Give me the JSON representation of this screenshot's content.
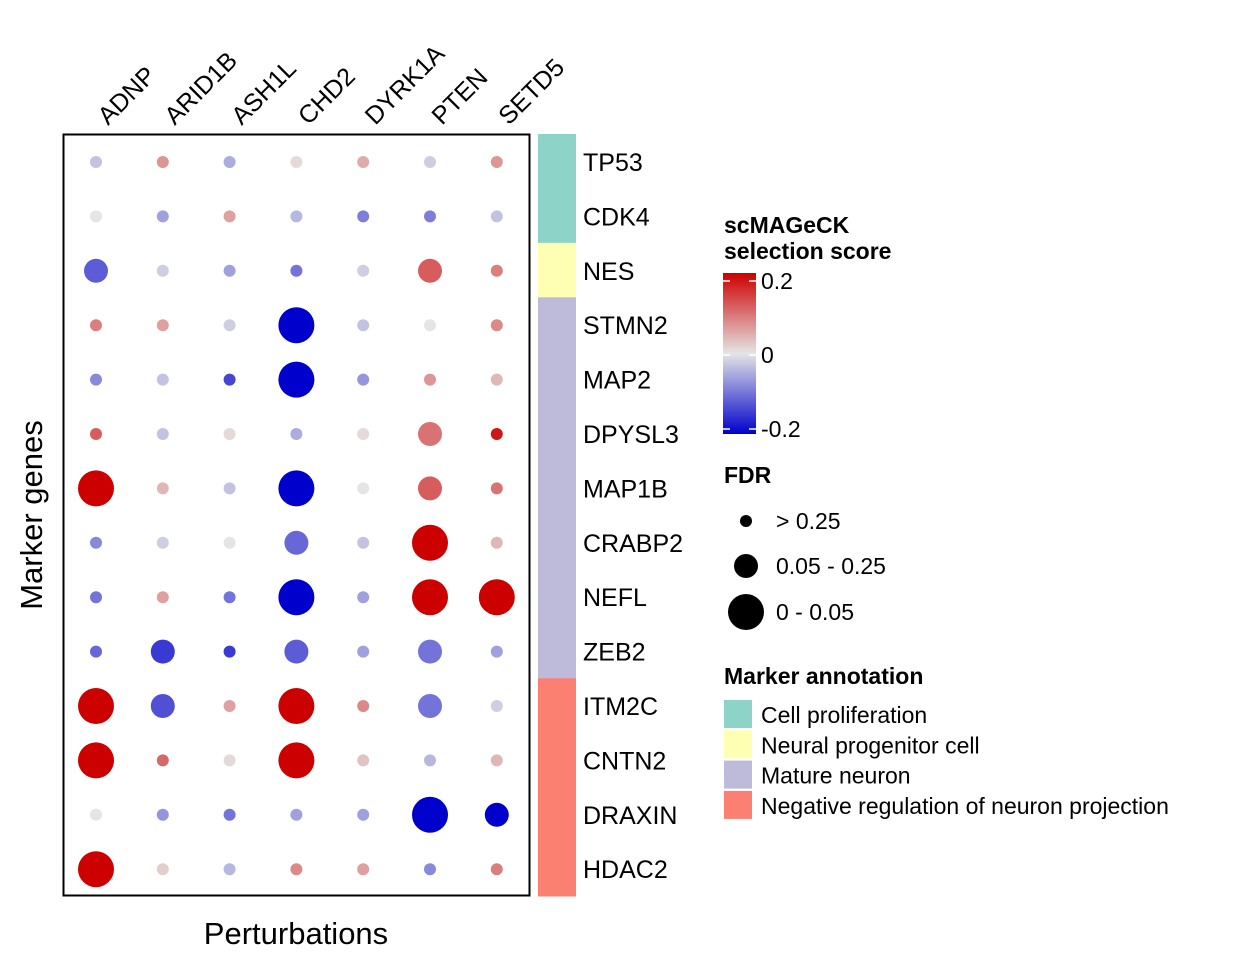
{
  "chart_data": {
    "type": "scatter",
    "subtype": "dot-heatmap",
    "xlabel": "Perturbations",
    "ylabel": "Marker genes",
    "x_categories": [
      "ADNP",
      "ARID1B",
      "ASH1L",
      "CHD2",
      "DYRK1A",
      "PTEN",
      "SETD5"
    ],
    "y_categories": [
      "TP53",
      "CDK4",
      "NES",
      "STMN2",
      "MAP2",
      "DPYSL3",
      "MAP1B",
      "CRABP2",
      "NEFL",
      "ZEB2",
      "ITM2C",
      "CNTN2",
      "DRAXIN",
      "HDAC2"
    ],
    "score_matrix": [
      [
        -0.03,
        0.07,
        -0.05,
        0.01,
        0.05,
        -0.02,
        0.07
      ],
      [
        0.0,
        -0.06,
        0.06,
        -0.04,
        -0.09,
        -0.09,
        -0.03
      ],
      [
        -0.12,
        -0.02,
        -0.06,
        -0.1,
        -0.02,
        0.12,
        0.09
      ],
      [
        0.09,
        0.06,
        -0.02,
        -0.2,
        -0.03,
        0.0,
        0.08
      ],
      [
        -0.08,
        -0.03,
        -0.14,
        -0.2,
        -0.07,
        0.07,
        0.04
      ],
      [
        0.12,
        -0.03,
        0.01,
        -0.05,
        0.01,
        0.1,
        0.18
      ],
      [
        0.2,
        0.04,
        -0.03,
        -0.2,
        0.0,
        0.12,
        0.1
      ],
      [
        -0.08,
        -0.02,
        0.0,
        -0.11,
        -0.03,
        0.2,
        0.04
      ],
      [
        -0.1,
        0.06,
        -0.1,
        -0.2,
        -0.06,
        0.2,
        0.2
      ],
      [
        -0.11,
        -0.15,
        -0.15,
        -0.12,
        -0.06,
        -0.1,
        -0.06
      ],
      [
        0.2,
        -0.13,
        0.06,
        0.2,
        0.08,
        -0.1,
        -0.02
      ],
      [
        0.2,
        0.11,
        0.01,
        0.2,
        0.03,
        -0.04,
        0.04
      ],
      [
        0.0,
        -0.07,
        -0.1,
        -0.06,
        -0.06,
        -0.2,
        -0.2
      ],
      [
        0.2,
        0.02,
        -0.04,
        0.08,
        0.06,
        -0.08,
        0.09
      ]
    ],
    "fdr_matrix": [
      [
        "> 0.25",
        "> 0.25",
        "> 0.25",
        "> 0.25",
        "> 0.25",
        "> 0.25",
        "> 0.25"
      ],
      [
        "> 0.25",
        "> 0.25",
        "> 0.25",
        "> 0.25",
        "> 0.25",
        "> 0.25",
        "> 0.25"
      ],
      [
        "0.05 - 0.25",
        "> 0.25",
        "> 0.25",
        "> 0.25",
        "> 0.25",
        "0.05 - 0.25",
        "> 0.25"
      ],
      [
        "> 0.25",
        "> 0.25",
        "> 0.25",
        "0 - 0.05",
        "> 0.25",
        "> 0.25",
        "> 0.25"
      ],
      [
        "> 0.25",
        "> 0.25",
        "> 0.25",
        "0 - 0.05",
        "> 0.25",
        "> 0.25",
        "> 0.25"
      ],
      [
        "> 0.25",
        "> 0.25",
        "> 0.25",
        "> 0.25",
        "> 0.25",
        "0.05 - 0.25",
        "> 0.25"
      ],
      [
        "0 - 0.05",
        "> 0.25",
        "> 0.25",
        "0 - 0.05",
        "> 0.25",
        "0.05 - 0.25",
        "> 0.25"
      ],
      [
        "> 0.25",
        "> 0.25",
        "> 0.25",
        "0.05 - 0.25",
        "> 0.25",
        "0 - 0.05",
        "> 0.25"
      ],
      [
        "> 0.25",
        "> 0.25",
        "> 0.25",
        "0 - 0.05",
        "> 0.25",
        "0 - 0.05",
        "0 - 0.05"
      ],
      [
        "> 0.25",
        "0.05 - 0.25",
        "> 0.25",
        "0.05 - 0.25",
        "> 0.25",
        "0.05 - 0.25",
        "> 0.25"
      ],
      [
        "0 - 0.05",
        "0.05 - 0.25",
        "> 0.25",
        "0 - 0.05",
        "> 0.25",
        "0.05 - 0.25",
        "> 0.25"
      ],
      [
        "0 - 0.05",
        "> 0.25",
        "> 0.25",
        "0 - 0.05",
        "> 0.25",
        "> 0.25",
        "> 0.25"
      ],
      [
        "> 0.25",
        "> 0.25",
        "> 0.25",
        "> 0.25",
        "> 0.25",
        "0 - 0.05",
        "0.05 - 0.25"
      ],
      [
        "0 - 0.05",
        "> 0.25",
        "> 0.25",
        "> 0.25",
        "> 0.25",
        "> 0.25",
        "> 0.25"
      ]
    ],
    "color_scale": {
      "title_lines": [
        "scMAGeCK",
        "selection score"
      ],
      "min": -0.2,
      "mid": 0,
      "max": 0.2,
      "ticks": [
        0.2,
        0,
        -0.2
      ],
      "tick_labels": [
        "0.2",
        "0",
        "-0.2"
      ],
      "low_color": "#0000CD",
      "mid_color": "#E5E5E5",
      "high_color": "#CD0000"
    },
    "size_legend": {
      "title": "FDR",
      "levels": [
        "> 0.25",
        "0.05 - 0.25",
        "0 - 0.05"
      ]
    },
    "row_annotation": {
      "title": "Marker annotation",
      "row_groups": [
        "Cell proliferation",
        "Cell proliferation",
        "Neural progenitor cell",
        "Mature neuron",
        "Mature neuron",
        "Mature neuron",
        "Mature neuron",
        "Mature neuron",
        "Mature neuron",
        "Mature neuron",
        "Negative regulation of neuron projection",
        "Negative regulation of neuron projection",
        "Negative regulation of neuron projection",
        "Negative regulation of neuron projection"
      ],
      "categories": [
        {
          "label": "Cell proliferation",
          "color": "#8DD3C7"
        },
        {
          "label": "Neural progenitor cell",
          "color": "#FFFFB3"
        },
        {
          "label": "Mature neuron",
          "color": "#BEBADA"
        },
        {
          "label": "Negative regulation of neuron projection",
          "color": "#FB8072"
        }
      ]
    },
    "legend_position": "right",
    "grid": false
  }
}
